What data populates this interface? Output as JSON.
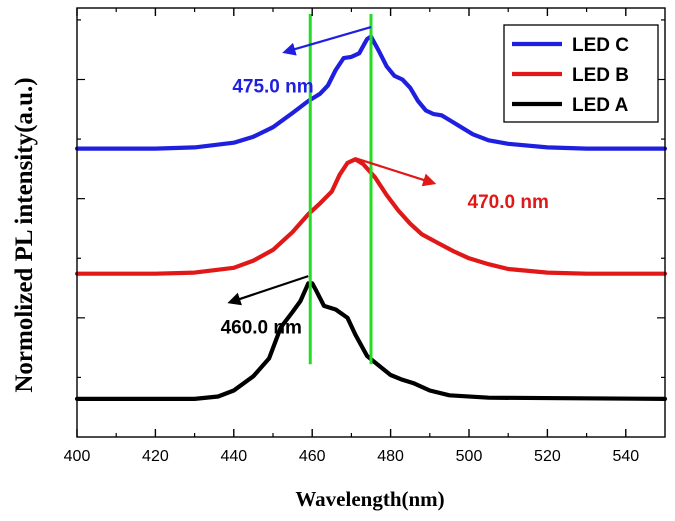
{
  "chart_data": {
    "type": "line",
    "title": "",
    "xlabel": "Wavelength(nm)",
    "ylabel": "Normolized PL intensity(a.u.)",
    "xlim": [
      400,
      550
    ],
    "ylim": [
      0,
      3.6
    ],
    "x_ticks": [
      "400",
      "420",
      "440",
      "460",
      "480",
      "500",
      "520",
      "540"
    ],
    "y_ticks_labeled": false,
    "legend_position": "top-right",
    "series": [
      {
        "name": "LED C",
        "color": "#1f1fe0",
        "points": [
          [
            400,
            2.42
          ],
          [
            420,
            2.42
          ],
          [
            430,
            2.43
          ],
          [
            440,
            2.47
          ],
          [
            445,
            2.52
          ],
          [
            450,
            2.6
          ],
          [
            455,
            2.72
          ],
          [
            459,
            2.82
          ],
          [
            462,
            2.88
          ],
          [
            464,
            2.95
          ],
          [
            466,
            3.08
          ],
          [
            468,
            3.18
          ],
          [
            470,
            3.19
          ],
          [
            472,
            3.22
          ],
          [
            474,
            3.34
          ],
          [
            475,
            3.36
          ],
          [
            477,
            3.24
          ],
          [
            479,
            3.11
          ],
          [
            481,
            3.03
          ],
          [
            483,
            3.0
          ],
          [
            485,
            2.93
          ],
          [
            487,
            2.82
          ],
          [
            489,
            2.74
          ],
          [
            491,
            2.71
          ],
          [
            493,
            2.7
          ],
          [
            495,
            2.66
          ],
          [
            498,
            2.6
          ],
          [
            501,
            2.54
          ],
          [
            505,
            2.49
          ],
          [
            510,
            2.46
          ],
          [
            520,
            2.43
          ],
          [
            530,
            2.42
          ],
          [
            550,
            2.42
          ]
        ]
      },
      {
        "name": "LED B",
        "color": "#e01818",
        "points": [
          [
            400,
            1.37
          ],
          [
            420,
            1.37
          ],
          [
            430,
            1.38
          ],
          [
            440,
            1.42
          ],
          [
            445,
            1.48
          ],
          [
            450,
            1.57
          ],
          [
            455,
            1.72
          ],
          [
            459,
            1.87
          ],
          [
            462,
            1.96
          ],
          [
            465,
            2.06
          ],
          [
            467,
            2.2
          ],
          [
            469,
            2.3
          ],
          [
            471,
            2.33
          ],
          [
            473,
            2.29
          ],
          [
            476,
            2.18
          ],
          [
            479,
            2.03
          ],
          [
            482,
            1.9
          ],
          [
            485,
            1.79
          ],
          [
            488,
            1.7
          ],
          [
            492,
            1.63
          ],
          [
            496,
            1.56
          ],
          [
            500,
            1.5
          ],
          [
            505,
            1.45
          ],
          [
            510,
            1.41
          ],
          [
            520,
            1.38
          ],
          [
            530,
            1.37
          ],
          [
            550,
            1.37
          ]
        ]
      },
      {
        "name": "LED A",
        "color": "#000000",
        "points": [
          [
            400,
            0.32
          ],
          [
            430,
            0.32
          ],
          [
            436,
            0.34
          ],
          [
            440,
            0.39
          ],
          [
            445,
            0.51
          ],
          [
            449,
            0.66
          ],
          [
            452,
            0.92
          ],
          [
            455,
            1.05
          ],
          [
            457,
            1.14
          ],
          [
            459,
            1.29
          ],
          [
            460,
            1.29
          ],
          [
            461,
            1.23
          ],
          [
            463,
            1.1
          ],
          [
            466,
            1.07
          ],
          [
            469,
            1.0
          ],
          [
            471,
            0.86
          ],
          [
            474,
            0.68
          ],
          [
            477,
            0.6
          ],
          [
            480,
            0.52
          ],
          [
            483,
            0.48
          ],
          [
            486,
            0.45
          ],
          [
            490,
            0.39
          ],
          [
            495,
            0.35
          ],
          [
            505,
            0.33
          ],
          [
            550,
            0.32
          ]
        ]
      }
    ],
    "markers": [
      {
        "name": "green-line-460",
        "x": 459.5,
        "color": "#22dd22"
      },
      {
        "name": "green-line-475",
        "x": 475.0,
        "color": "#22dd22"
      }
    ],
    "annotations": [
      {
        "label": "475.0 nm",
        "color": "#1f1fe0",
        "peak": [
          475,
          3.44
        ],
        "arrow_to": [
          453,
          3.23
        ],
        "text_at": [
          450,
          2.89
        ]
      },
      {
        "label": "470.0 nm",
        "color": "#e01818",
        "peak": [
          471,
          2.34
        ],
        "arrow_to": [
          491,
          2.13
        ],
        "text_at": [
          510,
          1.92
        ]
      },
      {
        "label": "460.0 nm",
        "color": "#000000",
        "peak": [
          459,
          1.35
        ],
        "arrow_to": [
          439,
          1.13
        ],
        "text_at": [
          447,
          0.87
        ]
      }
    ]
  }
}
